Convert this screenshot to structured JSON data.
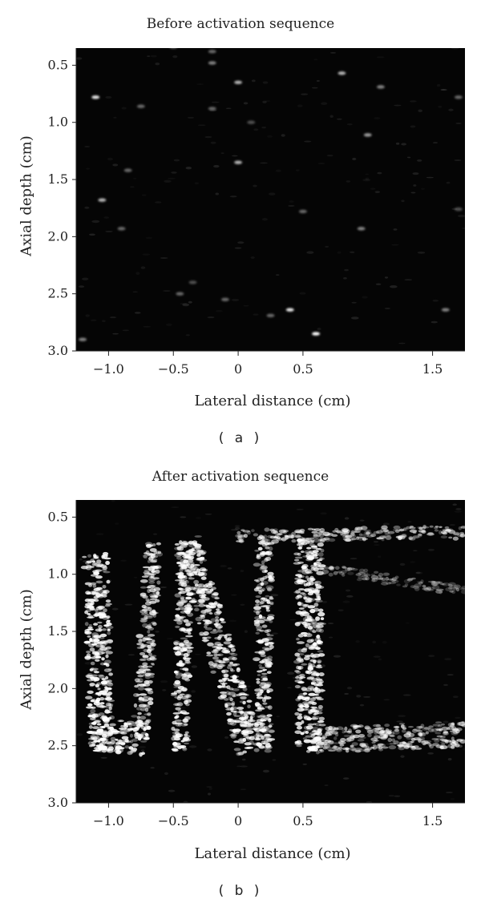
{
  "panel_a": {
    "title": "Before activation sequence",
    "xlabel": "Lateral distance (cm)",
    "ylabel": "Axial depth (cm)",
    "caption": "( a )"
  },
  "panel_b": {
    "title": "After activation sequence",
    "xlabel": "Lateral distance (cm)",
    "ylabel": "Axial depth (cm)",
    "caption": "( b )"
  },
  "chart_data": [
    {
      "type": "heatmap",
      "title": "Before activation sequence",
      "xlabel": "Lateral distance (cm)",
      "ylabel": "Axial depth (cm)",
      "xlim": [
        -1.25,
        1.75
      ],
      "ylim": [
        3.0,
        0.35
      ],
      "x_ticks": [
        -1.0,
        -0.5,
        0,
        0.5,
        1.5
      ],
      "x_tick_labels": [
        "−1.0",
        "−0.5",
        "0",
        "0.5",
        "1.5"
      ],
      "y_ticks": [
        0.5,
        1.0,
        1.5,
        2.0,
        2.5,
        3.0
      ],
      "y_tick_labels": [
        "0.5",
        "1.0",
        "1.5",
        "2.0",
        "2.5",
        "3.0"
      ],
      "colormap": "grayscale",
      "background": "#050505",
      "scatterers": [
        {
          "x": -1.1,
          "y": 0.78,
          "i": 0.9
        },
        {
          "x": 0.0,
          "y": 0.65,
          "i": 0.7
        },
        {
          "x": 0.8,
          "y": 0.57,
          "i": 0.7
        },
        {
          "x": 1.0,
          "y": 1.11,
          "i": 0.6
        },
        {
          "x": 0.0,
          "y": 1.35,
          "i": 0.7
        },
        {
          "x": -1.05,
          "y": 1.68,
          "i": 0.7
        },
        {
          "x": 0.4,
          "y": 2.64,
          "i": 0.9
        },
        {
          "x": 0.6,
          "y": 2.85,
          "i": 1.0
        },
        {
          "x": 0.95,
          "y": 1.93,
          "i": 0.5
        },
        {
          "x": 1.1,
          "y": 0.69,
          "i": 0.5
        },
        {
          "x": -0.85,
          "y": 1.42,
          "i": 0.4
        },
        {
          "x": -0.75,
          "y": 0.86,
          "i": 0.4
        },
        {
          "x": -0.2,
          "y": 0.88,
          "i": 0.4
        },
        {
          "x": -0.45,
          "y": 2.5,
          "i": 0.4
        },
        {
          "x": 0.25,
          "y": 2.69,
          "i": 0.4
        },
        {
          "x": 1.6,
          "y": 2.64,
          "i": 0.5
        },
        {
          "x": -0.2,
          "y": 0.48,
          "i": 0.5
        },
        {
          "x": -0.1,
          "y": 2.55,
          "i": 0.4
        },
        {
          "x": -0.2,
          "y": 0.38,
          "i": 0.4
        },
        {
          "x": -1.2,
          "y": 2.9,
          "i": 0.5
        },
        {
          "x": -0.5,
          "y": 0.34,
          "i": 0.4
        },
        {
          "x": 0.5,
          "y": 1.78,
          "i": 0.4
        },
        {
          "x": -0.9,
          "y": 1.93,
          "i": 0.4
        },
        {
          "x": 1.7,
          "y": 0.78,
          "i": 0.4
        },
        {
          "x": 1.7,
          "y": 1.76,
          "i": 0.3
        },
        {
          "x": -0.35,
          "y": 2.4,
          "i": 0.3
        },
        {
          "x": 0.1,
          "y": 1.0,
          "i": 0.3
        }
      ]
    },
    {
      "type": "heatmap",
      "title": "After activation sequence",
      "xlabel": "Lateral distance (cm)",
      "ylabel": "Axial depth (cm)",
      "xlim": [
        -1.25,
        1.75
      ],
      "ylim": [
        3.0,
        0.35
      ],
      "x_ticks": [
        -1.0,
        -0.5,
        0,
        0.5,
        1.5
      ],
      "x_tick_labels": [
        "−1.0",
        "−0.5",
        "0",
        "0.5",
        "1.5"
      ],
      "y_ticks": [
        0.5,
        1.0,
        1.5,
        2.0,
        2.5,
        3.0
      ],
      "y_tick_labels": [
        "0.5",
        "1.0",
        "1.5",
        "2.0",
        "2.5",
        "3.0"
      ],
      "colormap": "grayscale",
      "background": "#050505",
      "bright_regions": [
        {
          "shape": "line",
          "x1": -1.1,
          "y1": 0.8,
          "x2": -1.05,
          "y2": 2.55,
          "width": 0.18,
          "i": 0.9
        },
        {
          "shape": "line",
          "x1": -1.05,
          "y1": 2.4,
          "x2": -0.7,
          "y2": 2.45,
          "width": 0.25,
          "i": 0.9
        },
        {
          "shape": "line",
          "x1": -0.65,
          "y1": 0.7,
          "x2": -0.75,
          "y2": 2.35,
          "width": 0.12,
          "i": 0.75
        },
        {
          "shape": "line",
          "x1": -0.4,
          "y1": 0.7,
          "x2": -0.45,
          "y2": 2.55,
          "width": 0.12,
          "i": 0.85
        },
        {
          "shape": "line",
          "x1": -0.4,
          "y1": 0.7,
          "x2": 0.1,
          "y2": 2.55,
          "width": 0.2,
          "i": 0.8
        },
        {
          "shape": "line",
          "x1": 0.2,
          "y1": 0.7,
          "x2": 0.2,
          "y2": 2.55,
          "width": 0.12,
          "i": 0.8
        },
        {
          "shape": "line",
          "x1": 0.55,
          "y1": 0.7,
          "x2": 0.55,
          "y2": 2.55,
          "width": 0.2,
          "i": 0.85
        },
        {
          "shape": "line",
          "x1": 0.0,
          "y1": 0.67,
          "x2": 1.75,
          "y2": 0.63,
          "width": 0.1,
          "i": 0.6
        },
        {
          "shape": "line",
          "x1": 0.6,
          "y1": 2.45,
          "x2": 1.75,
          "y2": 2.4,
          "width": 0.2,
          "i": 0.6
        },
        {
          "shape": "line",
          "x1": 0.65,
          "y1": 0.95,
          "x2": 1.75,
          "y2": 1.15,
          "width": 0.08,
          "i": 0.35
        }
      ]
    }
  ]
}
